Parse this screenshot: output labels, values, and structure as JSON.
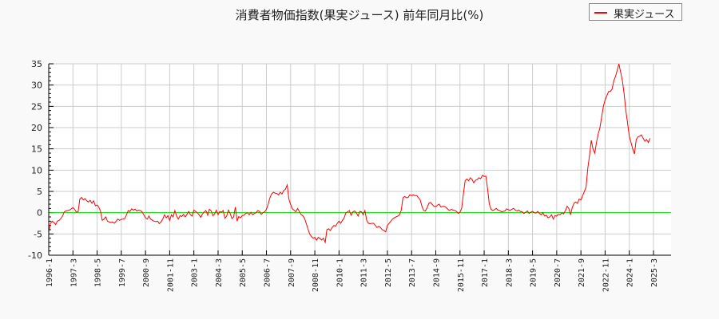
{
  "chart_data": {
    "type": "line",
    "title": "消費者物価指数(果実ジュース) 前年同月比(%)",
    "xlabel": "",
    "ylabel": "",
    "ylim": [
      -10,
      35
    ],
    "yticks": [
      35,
      30,
      25,
      20,
      15,
      10,
      5,
      0,
      -5,
      -10
    ],
    "xtick_labels": [
      "1996-1",
      "1997-3",
      "1998-5",
      "1999-7",
      "2000-9",
      "2001-11",
      "2003-1",
      "2004-3",
      "2005-5",
      "2006-7",
      "2007-9",
      "2008-11",
      "2010-1",
      "2011-3",
      "2012-5",
      "2013-7",
      "2014-9",
      "2015-11",
      "2017-1",
      "2018-3",
      "2019-5",
      "2020-7",
      "2021-9",
      "2022-11",
      "2024-1",
      "2025-3"
    ],
    "grid": true,
    "legend_position": "top-right",
    "reference_line": {
      "y": 0,
      "color": "#00dd00"
    },
    "series": [
      {
        "name": "果実ジュース",
        "color": "#ff0000",
        "start": "1996-1",
        "frequency": "monthly",
        "values": [
          -4.5,
          -2.5,
          -2.0,
          -2.3,
          -2.8,
          -2.0,
          -1.8,
          -1.4,
          -0.8,
          0.2,
          0.4,
          0.5,
          0.6,
          0.9,
          1.2,
          0.8,
          0.1,
          0.2,
          3.2,
          3.6,
          3.0,
          3.3,
          2.8,
          2.5,
          2.9,
          2.2,
          2.8,
          1.6,
          1.8,
          1.3,
          0.3,
          -1.8,
          -1.5,
          -1.0,
          -2.0,
          -2.2,
          -2.3,
          -2.2,
          -2.5,
          -2.0,
          -1.5,
          -1.8,
          -1.6,
          -1.5,
          -1.4,
          -0.5,
          0.5,
          0.3,
          0.9,
          0.6,
          0.8,
          0.4,
          0.6,
          0.5,
          0.2,
          -0.5,
          -1.2,
          -1.5,
          -0.8,
          -1.5,
          -1.8,
          -2.0,
          -2.1,
          -2.0,
          -2.6,
          -2.2,
          -1.5,
          -0.5,
          -1.2,
          -0.7,
          -1.8,
          -0.5,
          -1.0,
          0.5,
          -0.8,
          -1.5,
          -0.7,
          -0.9,
          -0.4,
          -1.0,
          -0.4,
          0.3,
          -0.5,
          -0.8,
          0.6,
          0.3,
          0.0,
          -0.5,
          -1.1,
          -0.3,
          0.2,
          0.5,
          -0.6,
          0.8,
          0.4,
          -0.7,
          -0.3,
          0.6,
          -0.5,
          0.3,
          0.1,
          0.5,
          -1.3,
          -0.8,
          0.6,
          -0.2,
          -1.4,
          -1.0,
          1.3,
          -2.0,
          -0.9,
          -1.2,
          -0.7,
          -0.6,
          -0.2,
          0.0,
          -0.5,
          0.1,
          -0.5,
          -0.2,
          0.0,
          0.5,
          0.3,
          -0.4,
          0.0,
          0.2,
          0.8,
          2.0,
          3.5,
          4.4,
          4.8,
          4.6,
          4.5,
          4.2,
          4.8,
          4.4,
          5.2,
          5.5,
          6.5,
          3.2,
          1.9,
          0.9,
          0.6,
          0.2,
          1.0,
          0.3,
          -0.4,
          -0.7,
          -1.3,
          -2.5,
          -3.8,
          -5.0,
          -5.6,
          -6.0,
          -5.8,
          -6.5,
          -5.8,
          -6.1,
          -6.4,
          -6.0,
          -7.0,
          -4.0,
          -3.8,
          -4.2,
          -3.5,
          -3.0,
          -3.2,
          -2.5,
          -2.0,
          -2.5,
          -1.8,
          -1.2,
          0.0,
          0.2,
          0.5,
          -0.6,
          0.2,
          0.4,
          0.0,
          -0.8,
          0.3,
          0.2,
          -0.5,
          0.5,
          -1.8,
          -2.5,
          -2.6,
          -2.5,
          -2.5,
          -3.0,
          -3.5,
          -3.2,
          -3.5,
          -4.0,
          -4.2,
          -4.5,
          -3.0,
          -2.5,
          -2.0,
          -1.5,
          -1.2,
          -1.0,
          -0.8,
          -0.5,
          0.5,
          3.5,
          3.8,
          3.5,
          3.6,
          4.2,
          4.0,
          4.2,
          4.0,
          4.0,
          3.5,
          3.0,
          1.5,
          0.5,
          0.4,
          1.2,
          2.2,
          2.4,
          1.9,
          1.5,
          1.4,
          1.8,
          2.0,
          1.3,
          1.5,
          1.5,
          1.2,
          0.8,
          0.5,
          0.8,
          0.6,
          0.5,
          0.3,
          -0.2,
          0.1,
          1.0,
          4.5,
          7.5,
          7.9,
          7.5,
          8.2,
          7.8,
          7.0,
          7.6,
          7.8,
          8.2,
          8.0,
          8.8,
          8.5,
          8.6,
          5.5,
          2.0,
          0.8,
          0.5,
          0.7,
          1.0,
          0.6,
          0.5,
          0.2,
          0.3,
          0.4,
          0.9,
          0.7,
          0.5,
          0.8,
          1.0,
          0.6,
          0.4,
          0.6,
          0.3,
          0.2,
          -0.2,
          0.1,
          0.4,
          -0.2,
          0.1,
          0.3,
          0.0,
          -0.1,
          0.3,
          -0.2,
          -0.5,
          0.0,
          -0.8,
          -0.6,
          -1.2,
          -1.0,
          -0.5,
          -1.5,
          -0.7,
          -0.8,
          -0.4,
          -0.5,
          0.0,
          -0.3,
          0.5,
          1.5,
          1.0,
          -0.5,
          1.2,
          2.2,
          2.5,
          2.2,
          3.2,
          3.0,
          4.0,
          5.0,
          6.0,
          10.5,
          13.5,
          17.0,
          15.0,
          14.0,
          16.5,
          18.5,
          20.0,
          22.5,
          25.0,
          26.5,
          27.5,
          28.5,
          28.5,
          29.0,
          31.0,
          32.0,
          33.5,
          35.0,
          33.0,
          31.0,
          28.0,
          24.0,
          21.0,
          18.0,
          16.5,
          15.0,
          13.8,
          17.2,
          17.8,
          18.0,
          18.3,
          17.5,
          16.8,
          17.2,
          16.5,
          17.5
        ]
      }
    ]
  },
  "header": {
    "title": "消費者物価指数(果実ジュース) 前年同月比(%)"
  },
  "legend": {
    "items": [
      {
        "label": "果実ジュース",
        "color": "#ff0000"
      }
    ]
  }
}
